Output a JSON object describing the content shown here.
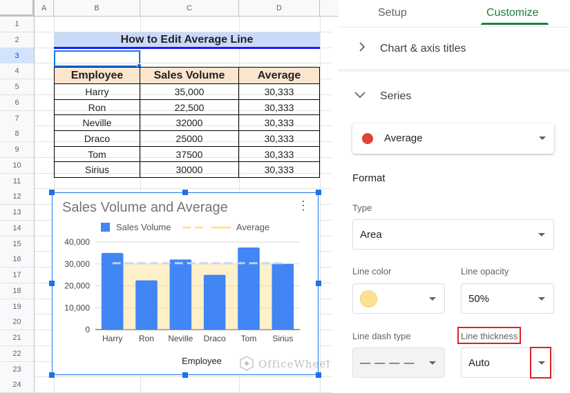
{
  "sheet": {
    "columns": [
      "A",
      "B",
      "C",
      "D"
    ],
    "rows": [
      "1",
      "2",
      "3",
      "4",
      "5",
      "6",
      "7",
      "8",
      "9",
      "10",
      "11",
      "12",
      "13",
      "14",
      "15",
      "16",
      "17",
      "18",
      "19",
      "20",
      "21",
      "22",
      "23",
      "24"
    ],
    "title": "How to Edit Average Line",
    "headers": [
      "Employee",
      "Sales Volume",
      "Average"
    ],
    "table": [
      [
        "Harry",
        "35,000",
        "30,333"
      ],
      [
        "Ron",
        "22,500",
        "30,333"
      ],
      [
        "Neville",
        "32000",
        "30,333"
      ],
      [
        "Draco",
        "25000",
        "30,333"
      ],
      [
        "Tom",
        "37500",
        "30,333"
      ],
      [
        "Sirius",
        "30000",
        "30,333"
      ]
    ]
  },
  "chart_data": {
    "type": "bar",
    "title": "Sales Volume and Average",
    "xlabel": "Employee",
    "ylabel": "",
    "categories": [
      "Harry",
      "Ron",
      "Neville",
      "Draco",
      "Tom",
      "Sirius"
    ],
    "series": [
      {
        "name": "Sales Volume",
        "type": "bar",
        "color": "#4285f4",
        "values": [
          35000,
          22500,
          32000,
          25000,
          37500,
          30000
        ]
      },
      {
        "name": "Average",
        "type": "area",
        "color": "#fde293",
        "values": [
          30333,
          30333,
          30333,
          30333,
          30333,
          30333
        ]
      }
    ],
    "yticks": [
      "0",
      "10,000",
      "20,000",
      "30,000",
      "40,000"
    ],
    "ylim": [
      0,
      40000
    ],
    "legend": "top"
  },
  "panel": {
    "tabs": [
      "Setup",
      "Customize"
    ],
    "active_tab": "Customize",
    "chart_axis_titles": "Chart & axis titles",
    "series_label": "Series",
    "series_selected": "Average",
    "series_color": "#db4437",
    "format_label": "Format",
    "type_label": "Type",
    "type_value": "Area",
    "line_color_label": "Line color",
    "line_color_value": "#fde293",
    "line_opacity_label": "Line opacity",
    "line_opacity_value": "50%",
    "line_dash_label": "Line dash type",
    "line_dash_value": "— — — —",
    "line_thickness_label": "Line thickness",
    "line_thickness_value": "Auto"
  },
  "watermark": "OfficeWheel"
}
